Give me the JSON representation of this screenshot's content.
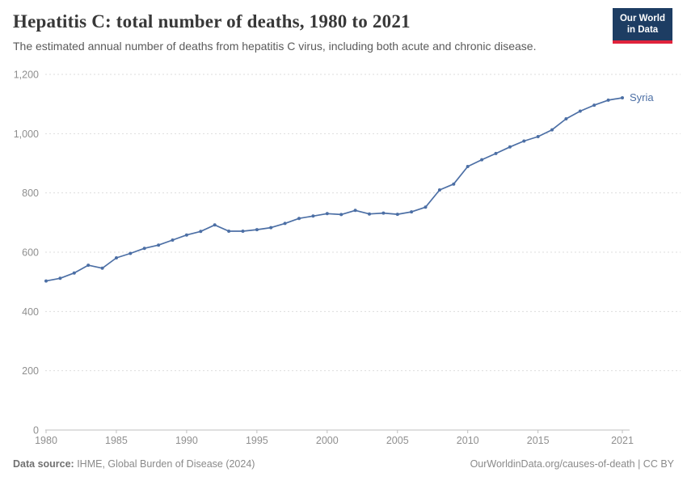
{
  "header": {
    "title": "Hepatitis C: total number of deaths, 1980 to 2021",
    "subtitle": "The estimated annual number of deaths from hepatitis C virus, including both acute and chronic disease.",
    "logo": {
      "line1": "Our World",
      "line2": "in Data"
    }
  },
  "footer": {
    "source_label": "Data source:",
    "source_text": " IHME, Global Burden of Disease (2024)",
    "link_text": "OurWorldinData.org/causes-of-death | CC BY"
  },
  "colors": {
    "series_blue": "#4C6FA5",
    "logo_navy": "#1D3D63",
    "logo_red": "#E0233C",
    "grid": "#DDDDDD",
    "axis": "#BFBFBF",
    "tick_label": "#8F8F8F"
  },
  "chart_data": {
    "type": "line",
    "title": "Hepatitis C: total number of deaths, 1980 to 2021",
    "xlabel": "",
    "ylabel": "",
    "xlim": [
      1980,
      2021
    ],
    "ylim": [
      0,
      1200
    ],
    "grid": "horizontal-dashed",
    "legend": "end-of-line-label",
    "x_ticks": [
      {
        "value": 1980,
        "label": "1980"
      },
      {
        "value": 1985,
        "label": "1985"
      },
      {
        "value": 1990,
        "label": "1990"
      },
      {
        "value": 1995,
        "label": "1995"
      },
      {
        "value": 2000,
        "label": "2000"
      },
      {
        "value": 2005,
        "label": "2005"
      },
      {
        "value": 2010,
        "label": "2010"
      },
      {
        "value": 2015,
        "label": "2015"
      },
      {
        "value": 2021,
        "label": "2021"
      }
    ],
    "y_ticks": [
      {
        "value": 0,
        "label": "0"
      },
      {
        "value": 200,
        "label": "200"
      },
      {
        "value": 400,
        "label": "400"
      },
      {
        "value": 600,
        "label": "600"
      },
      {
        "value": 800,
        "label": "800"
      },
      {
        "value": 1000,
        "label": "1,000"
      },
      {
        "value": 1200,
        "label": "1,200"
      }
    ],
    "series": [
      {
        "name": "Syria",
        "color": "#4C6FA5",
        "years": [
          1980,
          1981,
          1982,
          1983,
          1984,
          1985,
          1986,
          1987,
          1988,
          1989,
          1990,
          1991,
          1992,
          1993,
          1994,
          1995,
          1996,
          1997,
          1998,
          1999,
          2000,
          2001,
          2002,
          2003,
          2004,
          2005,
          2006,
          2007,
          2008,
          2009,
          2010,
          2011,
          2012,
          2013,
          2014,
          2015,
          2016,
          2017,
          2018,
          2019,
          2020,
          2021
        ],
        "values": [
          503,
          512,
          530,
          556,
          546,
          581,
          596,
          613,
          624,
          641,
          658,
          670,
          692,
          671,
          671,
          676,
          683,
          697,
          714,
          722,
          730,
          727,
          741,
          729,
          732,
          728,
          736,
          752,
          810,
          830,
          889,
          912,
          933,
          955,
          975,
          990,
          1013,
          1050,
          1076,
          1096,
          1113,
          1121
        ]
      }
    ]
  }
}
